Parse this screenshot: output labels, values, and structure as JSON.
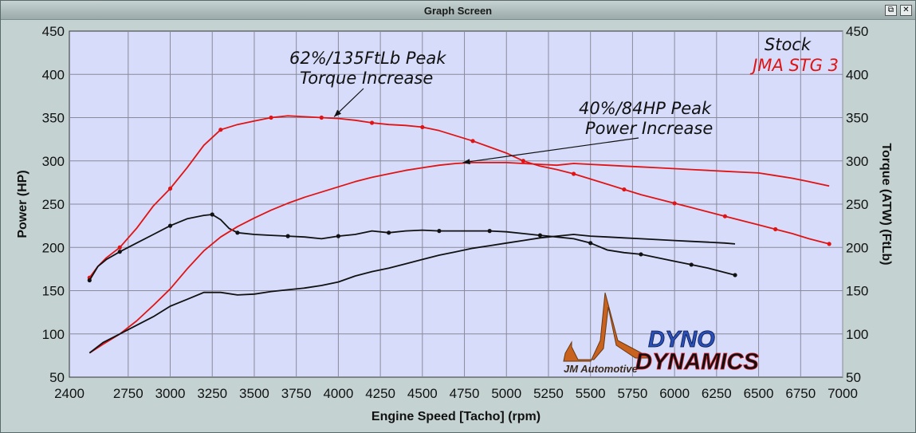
{
  "window": {
    "title": "Graph Screen",
    "restore_glyph": "⧉",
    "close_glyph": "✕"
  },
  "logo": {
    "company": "JM Automotive",
    "brand_top": "DYNO",
    "brand_bottom": "DYNAMICS",
    "colors": {
      "jm": "#c8621e",
      "dyno_blue": "#2a4fb5",
      "dynamics_red": "#d4202a",
      "dynamics_black": "#111111"
    }
  },
  "chart_data": {
    "type": "line",
    "xlabel": "Engine Speed [Tacho] (rpm)",
    "ylabel_left": "Power (HP)",
    "ylabel_right": "Torque (ATW) (FtLb)",
    "xlim": [
      2400,
      7000
    ],
    "ylim": [
      50,
      450
    ],
    "x_ticks": [
      2400,
      2750,
      3000,
      3250,
      3500,
      3750,
      4000,
      4250,
      4500,
      4750,
      5000,
      5250,
      5500,
      5750,
      6000,
      6250,
      6500,
      6750,
      7000
    ],
    "y_ticks": [
      50,
      100,
      150,
      200,
      250,
      300,
      350,
      400,
      450
    ],
    "grid": true,
    "background": "#d7dcfa",
    "legend_position": "top-right",
    "legend": [
      {
        "label": "Stock",
        "color": "#111111"
      },
      {
        "label": "JMA STG 3",
        "color": "#e01414"
      }
    ],
    "annotations": [
      {
        "line1": "62%/135FtLb Peak",
        "line2": "Torque Increase",
        "points_to": {
          "x": 3975,
          "y": 351
        }
      },
      {
        "line1": "40%/84HP Peak",
        "line2": "Power Increase",
        "points_to": {
          "x": 4740,
          "y": 298
        }
      }
    ],
    "series": [
      {
        "name": "JMA STG 3",
        "quantity": "Torque",
        "color": "#e01414",
        "markers": true,
        "x": [
          2520,
          2570,
          2620,
          2700,
          2800,
          2900,
          3000,
          3100,
          3200,
          3300,
          3400,
          3500,
          3600,
          3700,
          3800,
          3900,
          4000,
          4100,
          4200,
          4300,
          4400,
          4500,
          4600,
          4700,
          4800,
          4900,
          5000,
          5100,
          5200,
          5300,
          5400,
          5500,
          5600,
          5700,
          5800,
          5900,
          6000,
          6100,
          6200,
          6300,
          6400,
          6500,
          6600,
          6700,
          6800,
          6920
        ],
        "y": [
          165,
          178,
          188,
          200,
          222,
          248,
          268,
          292,
          318,
          336,
          342,
          346,
          350,
          352,
          351,
          350,
          349,
          347,
          344,
          342,
          341,
          339,
          335,
          329,
          323,
          316,
          309,
          300,
          294,
          290,
          285,
          279,
          273,
          267,
          261,
          256,
          251,
          246,
          241,
          236,
          231,
          226,
          221,
          216,
          210,
          204
        ]
      },
      {
        "name": "Stock",
        "quantity": "Torque",
        "color": "#111111",
        "markers": true,
        "x": [
          2520,
          2570,
          2620,
          2700,
          2800,
          2900,
          3000,
          3100,
          3200,
          3250,
          3300,
          3350,
          3400,
          3500,
          3600,
          3700,
          3800,
          3900,
          4000,
          4100,
          4200,
          4300,
          4400,
          4500,
          4600,
          4700,
          4800,
          4900,
          5000,
          5100,
          5200,
          5300,
          5400,
          5500,
          5600,
          5700,
          5800,
          5900,
          6000,
          6100,
          6200,
          6300,
          6360
        ],
        "y": [
          162,
          178,
          186,
          195,
          205,
          215,
          225,
          233,
          237,
          238,
          232,
          222,
          217,
          215,
          214,
          213,
          212,
          210,
          213,
          215,
          219,
          217,
          219,
          220,
          219,
          219,
          219,
          219,
          218,
          216,
          214,
          212,
          210,
          205,
          197,
          194,
          192,
          188,
          184,
          180,
          176,
          171,
          168
        ]
      },
      {
        "name": "JMA STG 3",
        "quantity": "Power",
        "color": "#e01414",
        "markers": false,
        "x": [
          2520,
          2600,
          2700,
          2800,
          2900,
          3000,
          3100,
          3200,
          3300,
          3400,
          3500,
          3600,
          3700,
          3800,
          3900,
          4000,
          4100,
          4200,
          4300,
          4400,
          4500,
          4600,
          4700,
          4800,
          4900,
          5000,
          5100,
          5200,
          5300,
          5400,
          5500,
          5600,
          5700,
          5800,
          5900,
          6000,
          6100,
          6200,
          6300,
          6400,
          6500,
          6600,
          6700,
          6800,
          6920
        ],
        "y": [
          78,
          88,
          100,
          115,
          133,
          152,
          175,
          196,
          212,
          224,
          234,
          243,
          251,
          258,
          264,
          270,
          276,
          281,
          285,
          289,
          292,
          295,
          297,
          298,
          298,
          298,
          297,
          296,
          295,
          297,
          296,
          295,
          294,
          293,
          292,
          291,
          290,
          289,
          288,
          287,
          286,
          283,
          280,
          276,
          271
        ]
      },
      {
        "name": "Stock",
        "quantity": "Power",
        "color": "#111111",
        "markers": false,
        "x": [
          2520,
          2600,
          2700,
          2800,
          2900,
          3000,
          3100,
          3200,
          3300,
          3400,
          3500,
          3600,
          3700,
          3800,
          3900,
          4000,
          4100,
          4200,
          4300,
          4400,
          4500,
          4600,
          4700,
          4800,
          4900,
          5000,
          5100,
          5200,
          5300,
          5400,
          5500,
          5600,
          5700,
          5800,
          5900,
          6000,
          6100,
          6200,
          6300,
          6360
        ],
        "y": [
          78,
          90,
          100,
          110,
          120,
          132,
          140,
          148,
          148,
          145,
          146,
          149,
          151,
          153,
          156,
          160,
          167,
          172,
          176,
          181,
          186,
          191,
          195,
          199,
          202,
          205,
          208,
          211,
          213,
          215,
          213,
          212,
          211,
          210,
          209,
          208,
          207,
          206,
          205,
          204
        ]
      }
    ]
  }
}
